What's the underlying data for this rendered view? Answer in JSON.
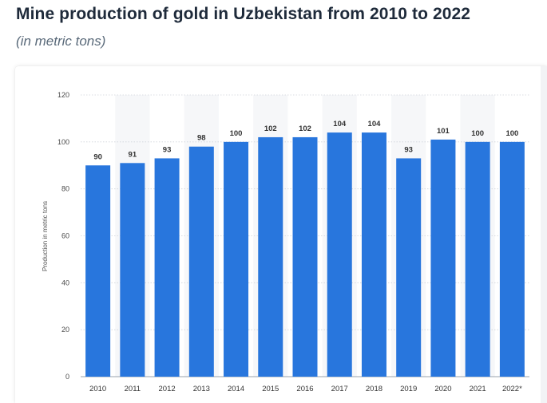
{
  "header": {
    "title": "Mine production of gold in Uzbekistan from 2010 to 2022",
    "subtitle": "(in metric tons)"
  },
  "colors": {
    "bar": "#2876dd",
    "band": "#f6f7f9",
    "grid": "#cfd4da",
    "title": "#1e2a3a",
    "subtitle": "#5a6a7a"
  },
  "chart_data": {
    "type": "bar",
    "categories": [
      "2010",
      "2011",
      "2012",
      "2013",
      "2014",
      "2015",
      "2016",
      "2017",
      "2018",
      "2019",
      "2020",
      "2021",
      "2022*"
    ],
    "values": [
      90,
      91,
      93,
      98,
      100,
      102,
      102,
      104,
      104,
      93,
      101,
      100,
      100
    ],
    "value_labels": [
      "90",
      "91",
      "93",
      "98",
      "100",
      "102",
      "102",
      "104",
      "104",
      "93",
      "101",
      "100",
      "100"
    ],
    "ylabel": "Production in metric tons",
    "xlabel": "",
    "ylim": [
      0,
      120
    ],
    "yticks": [
      "0",
      "20",
      "40",
      "60",
      "80",
      "100",
      "120"
    ],
    "grid": true,
    "alternating_column_bands": true,
    "legend": "none"
  }
}
